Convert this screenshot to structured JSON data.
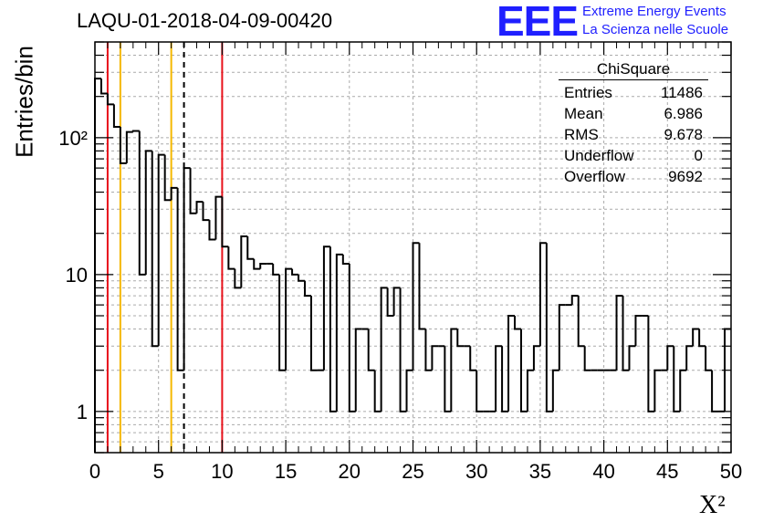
{
  "header": {
    "title": "LAQU-01-2018-04-09-00420",
    "logo_text": "EEE",
    "logo_line1": "Extreme Energy Events",
    "logo_line2": "La Scienza nelle Scuole",
    "logo_color": "#1f1fff"
  },
  "stats_box": {
    "title": "ChiSquare",
    "rows": [
      {
        "label": "Entries",
        "value": "11486"
      },
      {
        "label": "Mean",
        "value": "6.986"
      },
      {
        "label": "RMS",
        "value": "9.678"
      },
      {
        "label": "Underflow",
        "value": "0"
      },
      {
        "label": "Overflow",
        "value": "9692"
      }
    ]
  },
  "chart_data": {
    "type": "histogram",
    "title": "LAQU-01-2018-04-09-00420",
    "xlabel": "X²",
    "ylabel": "Entries/bin",
    "xlim": [
      0,
      50
    ],
    "ylim": [
      0.5,
      500
    ],
    "log_y": true,
    "grid": true,
    "bin_width": 0.5,
    "x_ticks": [
      0,
      5,
      10,
      15,
      20,
      25,
      30,
      35,
      40,
      45,
      50
    ],
    "y_ticks": [
      {
        "value": 1,
        "label": "1"
      },
      {
        "value": 10,
        "label": "10"
      },
      {
        "value": 100,
        "label": "10²"
      }
    ],
    "values": [
      270,
      210,
      175,
      120,
      65,
      110,
      112,
      10,
      80,
      3,
      75,
      35,
      43,
      2,
      60,
      28,
      34,
      25,
      18,
      37,
      16,
      11,
      8,
      19,
      13,
      11,
      12,
      12,
      10,
      2,
      11,
      10,
      9,
      7,
      2,
      2,
      16,
      1,
      14,
      12,
      1,
      4,
      4,
      2,
      1,
      8,
      5,
      8,
      1,
      2,
      17,
      4,
      2,
      3,
      3,
      1,
      4,
      3,
      3,
      2,
      1,
      1,
      1,
      3,
      1,
      5,
      4,
      1,
      2,
      3,
      17,
      1,
      2,
      6,
      6,
      7,
      3,
      2,
      2,
      2,
      2,
      2,
      7,
      2,
      3,
      5,
      5,
      1,
      2,
      2,
      3,
      1,
      2,
      3,
      4,
      3,
      2,
      1,
      1,
      4
    ],
    "vlines": [
      {
        "x": 1,
        "color": "#e8111a",
        "style": "solid"
      },
      {
        "x": 2,
        "color": "#f5b800",
        "style": "solid"
      },
      {
        "x": 6,
        "color": "#f5b800",
        "style": "solid"
      },
      {
        "x": 7,
        "color": "#000000",
        "style": "dashed"
      },
      {
        "x": 10,
        "color": "#e8111a",
        "style": "solid"
      }
    ]
  }
}
